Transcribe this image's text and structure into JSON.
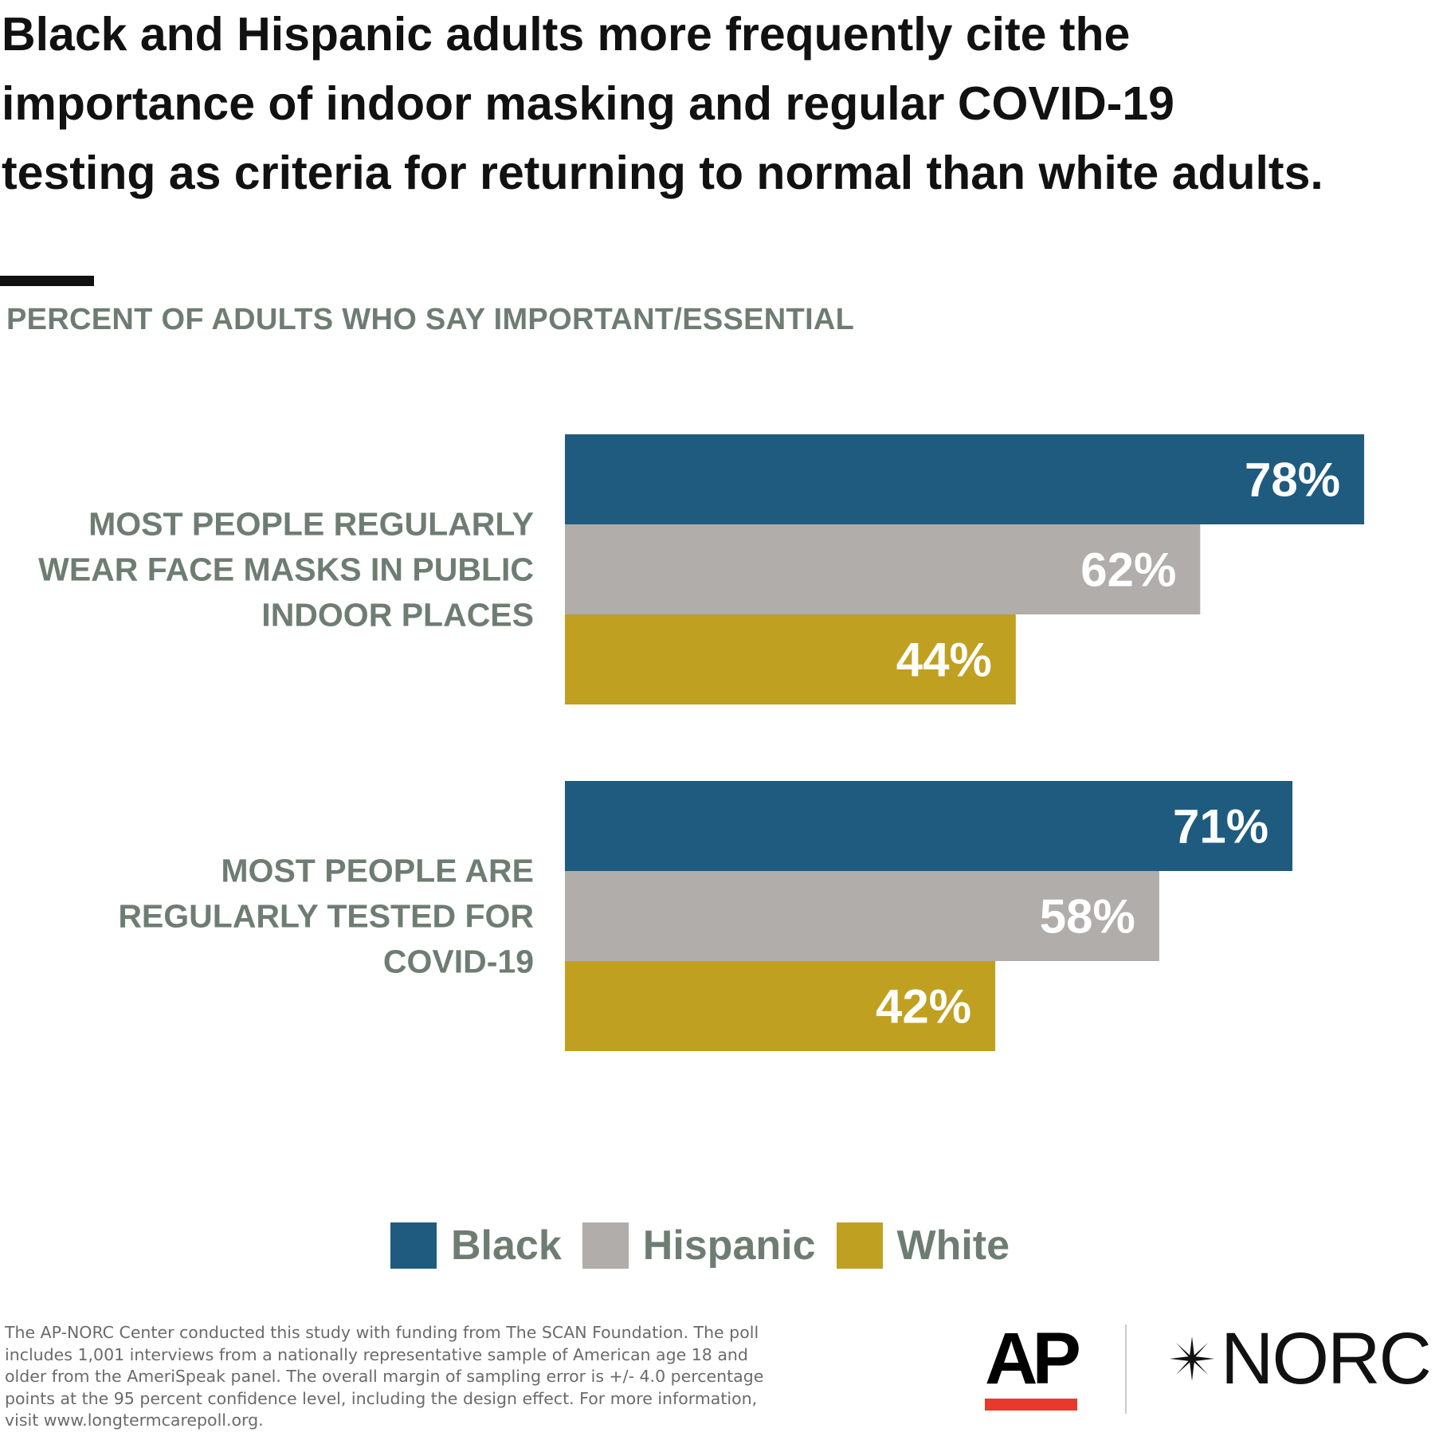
{
  "title": "Black and Hispanic adults more frequently cite the importance of indoor masking and regular COVID-19 testing as criteria for returning to normal than white adults.",
  "subtitle": "PERCENT OF ADULTS WHO SAY IMPORTANT/ESSENTIAL",
  "chart_data": {
    "type": "bar",
    "orientation": "horizontal",
    "categories": [
      "MOST PEOPLE REGULARLY WEAR FACE MASKS IN PUBLIC INDOOR PLACES",
      "MOST PEOPLE ARE REGULARLY TESTED FOR COVID-19"
    ],
    "category_lines": [
      [
        "MOST PEOPLE REGULARLY",
        "WEAR FACE MASKS IN PUBLIC",
        "INDOOR PLACES"
      ],
      [
        "MOST PEOPLE ARE",
        "REGULARLY TESTED FOR",
        "COVID-19"
      ]
    ],
    "series": [
      {
        "name": "Black",
        "values": [
          78,
          71
        ],
        "color": "#1f5b7e"
      },
      {
        "name": "Hispanic",
        "values": [
          62,
          58
        ],
        "color": "#b0adab"
      },
      {
        "name": "White",
        "values": [
          44,
          42
        ],
        "color": "#c0a020"
      }
    ],
    "value_suffix": "%",
    "xlim": [
      0,
      100
    ],
    "grid": false,
    "legend_position": "bottom-center"
  },
  "legend": {
    "black": "Black",
    "hispanic": "Hispanic",
    "white": "White"
  },
  "footnote": "The AP-NORC Center conducted this study with funding from The SCAN Foundation. The poll includes 1,001 interviews from a nationally representative sample of American age 18 and older from the AmeriSpeak panel. The overall margin of sampling error is +/- 4.0 percentage points at the 95 percent confidence level, including the design effect. For more information, visit www.longtermcarepoll.org.",
  "logos": {
    "ap": "AP",
    "norc": "NORC",
    "ap_accent_color": "#e8392d"
  }
}
